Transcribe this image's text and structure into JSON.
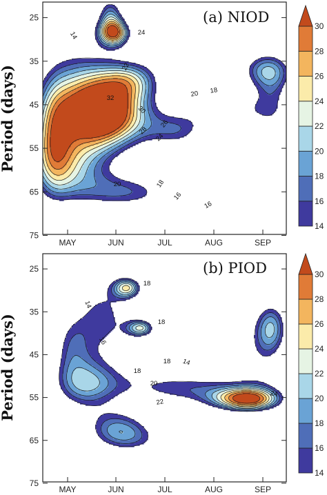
{
  "chart_data": [
    {
      "type": "heatmap",
      "subtype": "filled-contour",
      "title": "(a) NIOD",
      "xlabel": "",
      "ylabel": "Period (days)",
      "x_ticks": [
        "MAY",
        "JUN",
        "JUL",
        "AUG",
        "SEP"
      ],
      "y_ticks": [
        "25",
        "35",
        "45",
        "55",
        "65",
        "75"
      ],
      "ylim": [
        20,
        80
      ],
      "y_inverted": true,
      "contour_levels": [
        14,
        16,
        18,
        20,
        22,
        24,
        26,
        28,
        30
      ],
      "contour_labels": [
        "14",
        "16",
        "16",
        "18",
        "18",
        "20",
        "20",
        "22",
        "24",
        "24",
        "26",
        "28",
        "30",
        "32"
      ],
      "peaks": [
        {
          "month": "JUN",
          "period": 27,
          "value": 24.5
        },
        {
          "month": "JUN",
          "period": 50,
          "value": 32.5
        }
      ]
    },
    {
      "type": "heatmap",
      "subtype": "filled-contour",
      "title": "(b) PIOD",
      "xlabel": "",
      "ylabel": "Period (days)",
      "x_ticks": [
        "MAY",
        "JUN",
        "JUL",
        "AUG",
        "SEP"
      ],
      "y_ticks": [
        "25",
        "35",
        "45",
        "55",
        "65",
        "75"
      ],
      "ylim": [
        20,
        80
      ],
      "y_inverted": true,
      "contour_levels": [
        14,
        16,
        18,
        20,
        22,
        24,
        26,
        28,
        30
      ],
      "contour_labels": [
        "14",
        "14",
        "16",
        "18",
        "18",
        "18",
        "18",
        "20",
        "22",
        "24"
      ],
      "peaks": [
        {
          "month": "AUG",
          "period": 59,
          "value": 24.5
        },
        {
          "month": "JUN",
          "period": 28,
          "value": 18.5
        },
        {
          "month": "JUN",
          "period": 40,
          "value": 18.5
        }
      ]
    }
  ],
  "colorbar": {
    "labels": [
      "14",
      "16",
      "18",
      "20",
      "22",
      "24",
      "26",
      "28",
      "30"
    ],
    "colors": [
      "#3f3a9e",
      "#4f6eb8",
      "#6aa3d5",
      "#a9d6e8",
      "#e6f4e4",
      "#fbebaa",
      "#f3b55e",
      "#e07b37",
      "#c24a1c"
    ],
    "extend": "max"
  },
  "colors": {
    "lt14": "#ffffff",
    "l14": "#3f3a9e",
    "l16": "#4f6eb8",
    "l18": "#6aa3d5",
    "l20": "#a9d6e8",
    "l22": "#e6f4e4",
    "l24": "#fbebaa",
    "l26": "#f3b55e",
    "l28": "#e07b37",
    "l30": "#c24a1c"
  }
}
